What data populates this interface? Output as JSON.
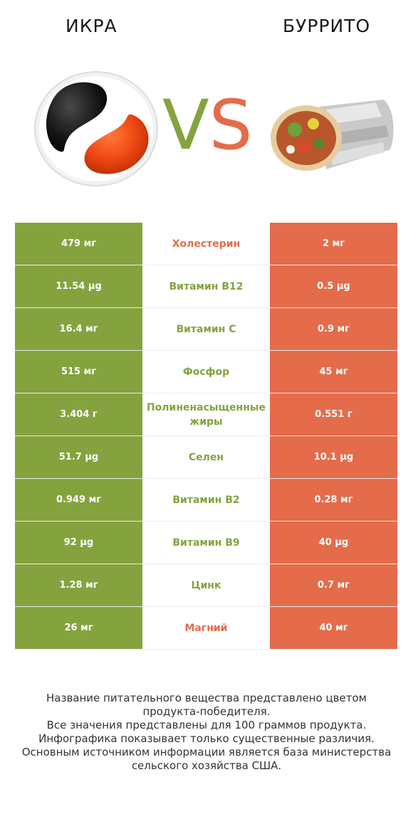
{
  "header": {
    "left_title": "ИКРА",
    "right_title": "БУРРИТО",
    "vs_v": "V",
    "vs_s": "S",
    "left_image_icon": "caviar-yin-yang-plate-image",
    "right_image_icon": "burrito-image"
  },
  "colors": {
    "left_winner": "#84a33e",
    "right_winner": "#e46c4b"
  },
  "chart_data": {
    "type": "table",
    "columns": [
      "ИКРА",
      "",
      "БУРРИТО"
    ],
    "rows": [
      {
        "nutrient": "Холестерин",
        "left": "479 мг",
        "right": "2 мг",
        "winner": "right"
      },
      {
        "nutrient": "Витамин B12",
        "left": "11.54 µg",
        "right": "0.5 µg",
        "winner": "left"
      },
      {
        "nutrient": "Витамин C",
        "left": "16.4 мг",
        "right": "0.9 мг",
        "winner": "left"
      },
      {
        "nutrient": "Фосфор",
        "left": "515 мг",
        "right": "45 мг",
        "winner": "left"
      },
      {
        "nutrient": "Полиненасыщенные жиры",
        "left": "3.404 г",
        "right": "0.551 г",
        "winner": "left"
      },
      {
        "nutrient": "Селен",
        "left": "51.7 µg",
        "right": "10.1 µg",
        "winner": "left"
      },
      {
        "nutrient": "Витамин B2",
        "left": "0.949 мг",
        "right": "0.28 мг",
        "winner": "left"
      },
      {
        "nutrient": "Витамин B9",
        "left": "92 µg",
        "right": "40 µg",
        "winner": "left"
      },
      {
        "nutrient": "Цинк",
        "left": "1.28 мг",
        "right": "0.7 мг",
        "winner": "left"
      },
      {
        "nutrient": "Магний",
        "left": "26 мг",
        "right": "40 мг",
        "winner": "right"
      }
    ]
  },
  "footnote": {
    "line1": "Название питательного вещества представлено цветом",
    "line2": "продукта-победителя.",
    "line3": "Все значения представлены для 100 граммов продукта.",
    "line4": "Инфографика показывает только существенные различия.",
    "line5": "Основным источником информации является база министерства",
    "line6": "сельского хозяйства США."
  }
}
